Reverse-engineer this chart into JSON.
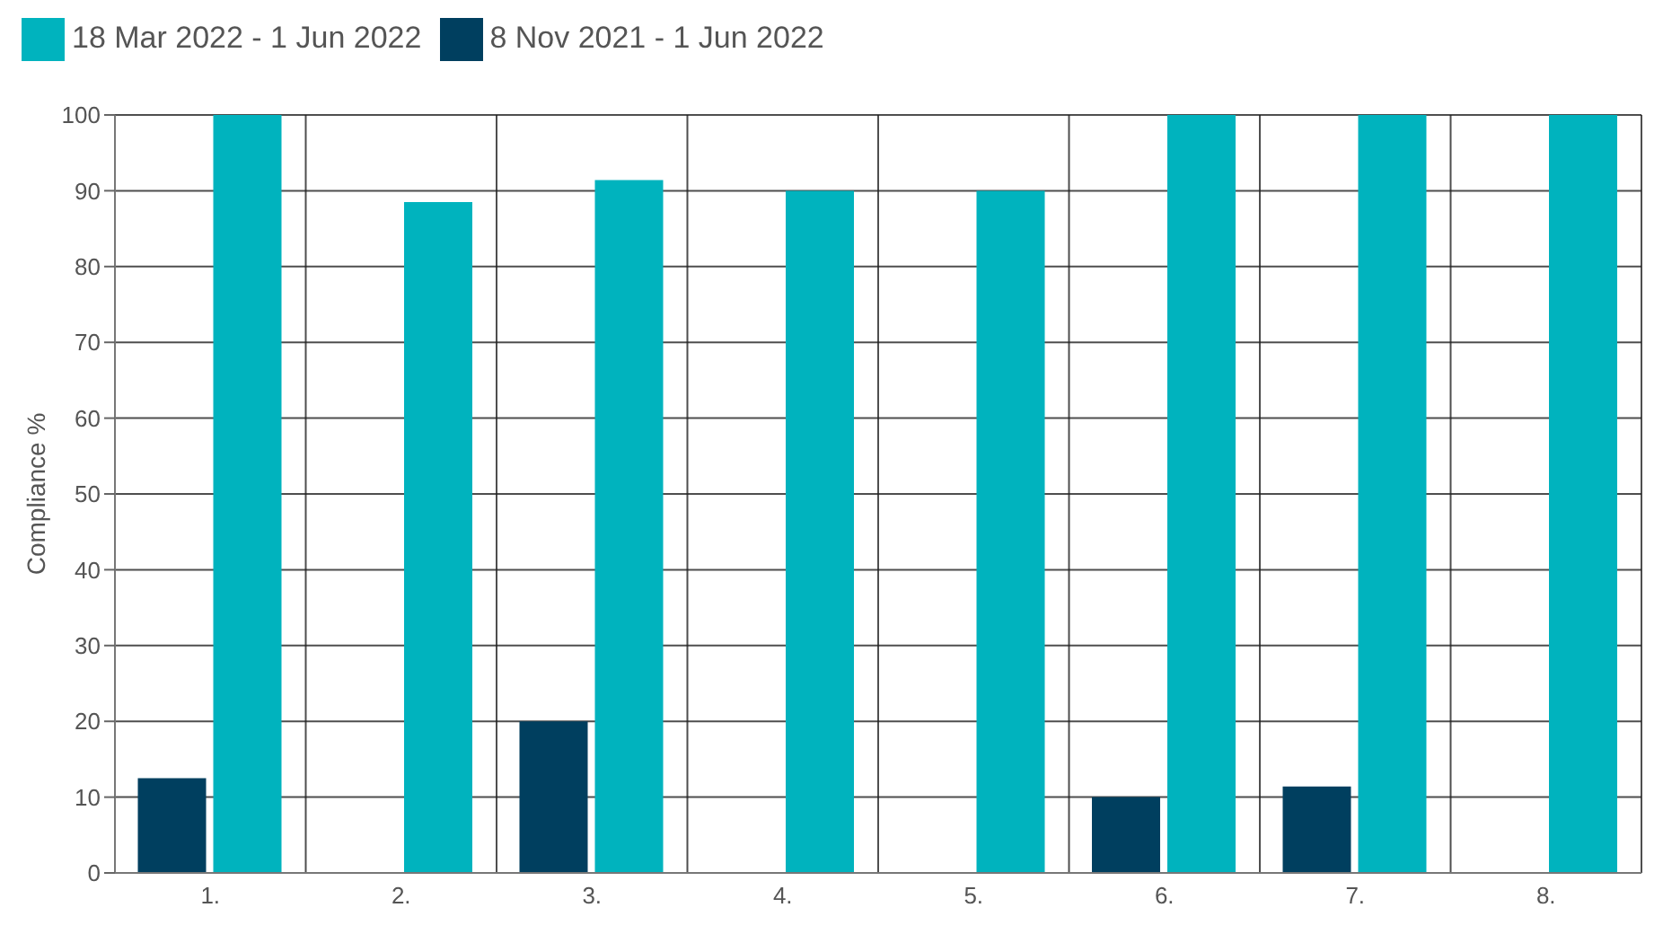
{
  "chart_data": {
    "type": "bar",
    "ylabel": "Compliance %",
    "categories": [
      "1.",
      "2.",
      "3.",
      "4.",
      "5.",
      "6.",
      "7.",
      "8."
    ],
    "series": [
      {
        "name": "8 Nov 2021 - 1 Jun 2022",
        "color": "#003f5f",
        "values": [
          12.5,
          0,
          20,
          0,
          0,
          10,
          11.4,
          0
        ]
      },
      {
        "name": "18 Mar 2022 - 1 Jun 2022",
        "color": "#00b3be",
        "values": [
          100,
          88.5,
          91.4,
          90,
          90,
          100,
          100,
          100
        ]
      }
    ],
    "ylim": [
      0,
      100
    ],
    "yticks": [
      0,
      10,
      20,
      30,
      40,
      50,
      60,
      70,
      80,
      90,
      100
    ],
    "grid": true,
    "legend": "top left"
  }
}
